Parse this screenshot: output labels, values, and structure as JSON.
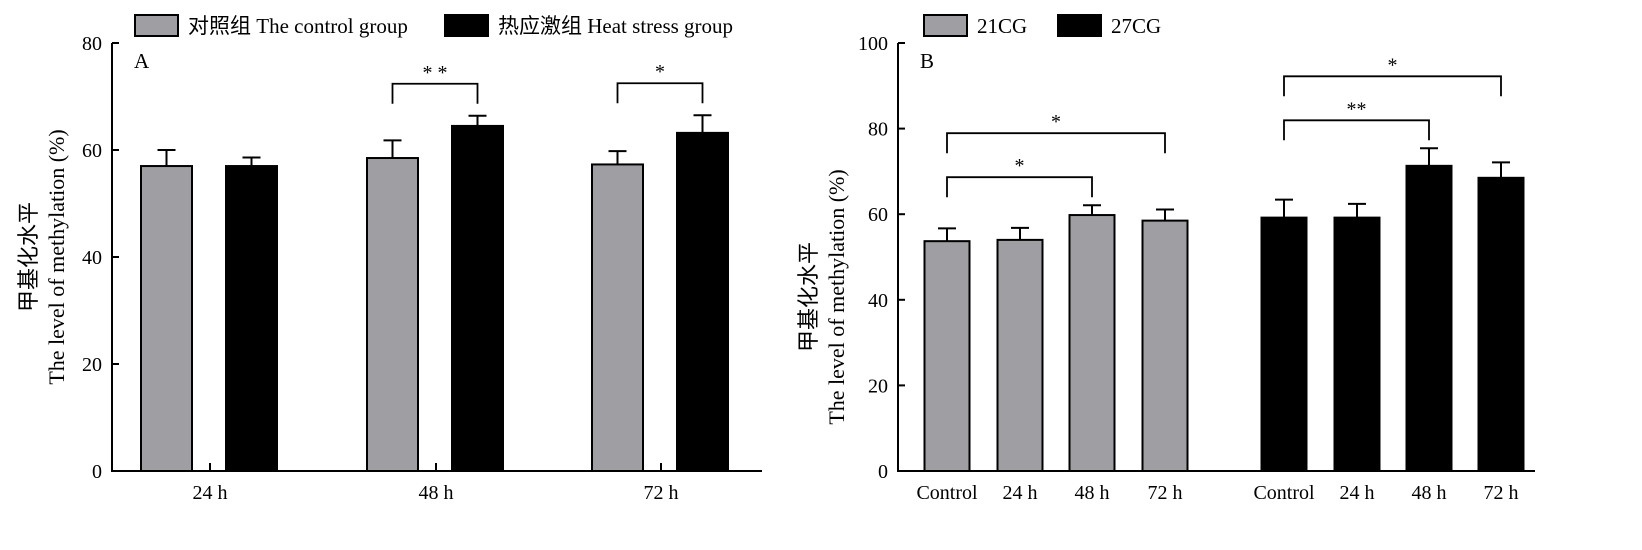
{
  "colors": {
    "gray": "#9e9ea3",
    "black": "#000000"
  },
  "chart_data": [
    {
      "type": "bar",
      "panel_label": "A",
      "ylabel_lines": [
        "甲基化水平",
        "The level of methylation (%)"
      ],
      "ylim": [
        0,
        80
      ],
      "yticks": [
        0,
        20,
        40,
        60,
        80
      ],
      "categories": [
        "24 h",
        "48 h",
        "72 h"
      ],
      "series": [
        {
          "name": "对照组 The control group",
          "color": "#9e9ea3",
          "values": [
            57.0,
            58.5,
            57.3
          ],
          "errors": [
            3.0,
            3.3,
            2.5
          ]
        },
        {
          "name": "热应激组 Heat stress group",
          "color": "#000000",
          "values": [
            57.0,
            64.5,
            63.2
          ],
          "errors": [
            1.6,
            1.9,
            3.3
          ]
        }
      ],
      "legend_position": "top",
      "significance": [
        {
          "label": "* *",
          "category_index": 1
        },
        {
          "label": "*",
          "category_index": 2
        }
      ]
    },
    {
      "type": "bar",
      "panel_label": "B",
      "ylabel_lines": [
        "甲基化水平",
        "The level of methylation (%)"
      ],
      "ylim": [
        0,
        100
      ],
      "yticks": [
        0,
        20,
        40,
        60,
        80,
        100
      ],
      "legend": [
        {
          "name": "21CG",
          "color": "#9e9ea3"
        },
        {
          "name": "27CG",
          "color": "#000000"
        }
      ],
      "legend_position": "top-left",
      "groups": [
        {
          "series": "21CG",
          "color": "#9e9ea3",
          "categories": [
            "Control",
            "24 h",
            "48 h",
            "72 h"
          ],
          "values": [
            53.7,
            54.0,
            59.8,
            58.5
          ],
          "errors": [
            3.0,
            2.8,
            2.3,
            2.6
          ]
        },
        {
          "series": "27CG",
          "color": "#000000",
          "categories": [
            "Control",
            "24 h",
            "48 h",
            "72 h"
          ],
          "values": [
            59.2,
            59.2,
            71.3,
            68.5
          ],
          "errors": [
            4.2,
            3.2,
            4.1,
            3.6
          ]
        }
      ],
      "significance": [
        {
          "label": "*",
          "group": 0,
          "from": 0,
          "to": 2,
          "level": 1
        },
        {
          "label": "*",
          "group": 0,
          "from": 0,
          "to": 3,
          "level": 2
        },
        {
          "label": "**",
          "group": 1,
          "from": 0,
          "to": 2,
          "level": 1
        },
        {
          "label": "*",
          "group": 1,
          "from": 0,
          "to": 3,
          "level": 2
        }
      ]
    }
  ]
}
